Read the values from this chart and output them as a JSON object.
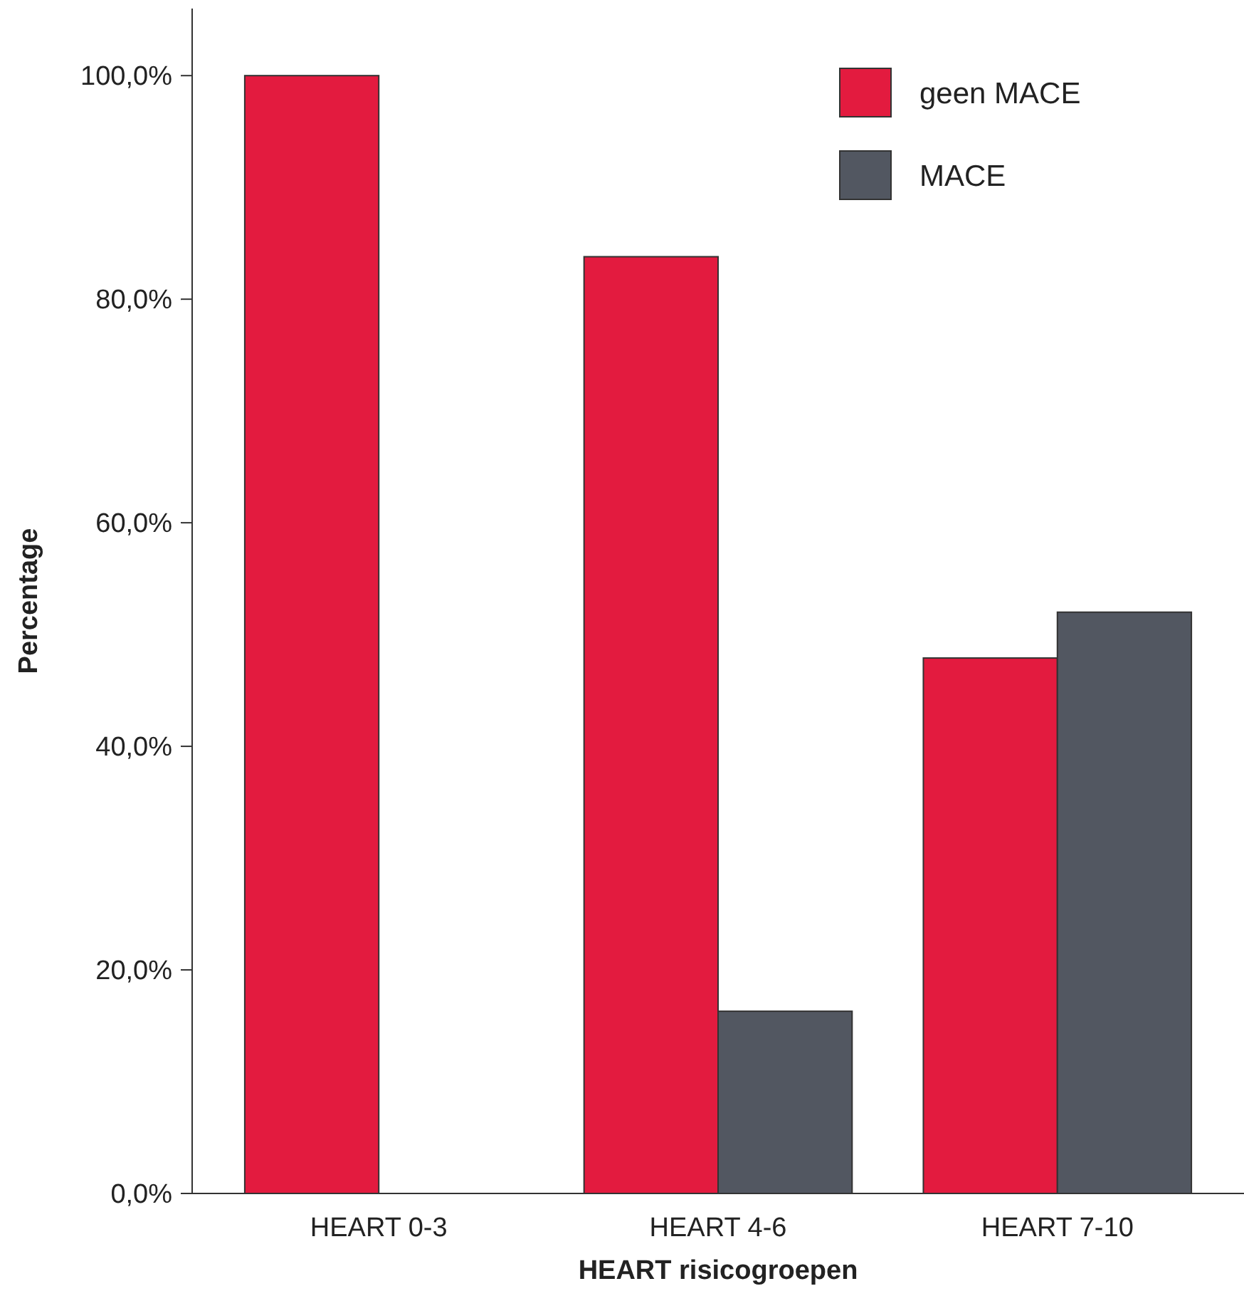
{
  "chart_data": {
    "type": "bar",
    "xlabel": "HEART risicogroepen",
    "ylabel": "Percentage",
    "categories": [
      "HEART 0-3",
      "HEART 4-6",
      "HEART 7-10"
    ],
    "series": [
      {
        "name": "geen MACE",
        "color": "#e31b3f",
        "values": [
          100,
          83.8,
          47.9
        ]
      },
      {
        "name": "MACE",
        "color": "#525761",
        "values": [
          0,
          16.3,
          52.0
        ]
      }
    ],
    "ylim": [
      0,
      106
    ],
    "yticks": [
      {
        "value": 0,
        "label": "0,0%"
      },
      {
        "value": 20,
        "label": "20,0%"
      },
      {
        "value": 40,
        "label": "40,0%"
      },
      {
        "value": 60,
        "label": "60,0%"
      },
      {
        "value": 80,
        "label": "80,0%"
      },
      {
        "value": 100,
        "label": "100,0%"
      }
    ],
    "grid": false,
    "legend": "top right"
  }
}
